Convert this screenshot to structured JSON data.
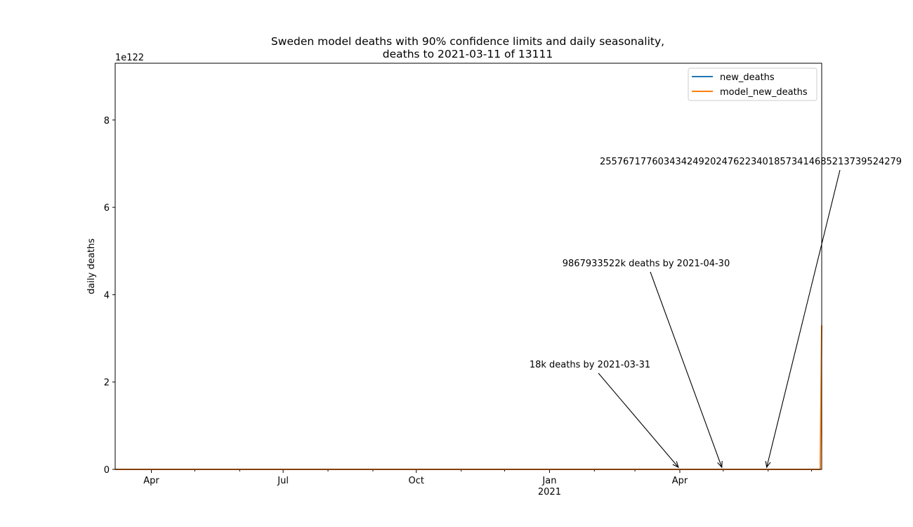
{
  "chart_data": {
    "type": "line",
    "title_line1": "Sweden model deaths with 90% confidence limits and daily seasonality,",
    "title_line2": "deaths to 2021-03-11 of 13111",
    "ylabel": "daily deaths",
    "xlabel": "",
    "y_scale_label": "1e122",
    "x_start": "2020-03-07",
    "x_end": "2021-07-08",
    "ylim": [
      0,
      9.3
    ],
    "yticks": [
      0,
      2,
      4,
      6,
      8
    ],
    "ytick_labels": [
      "0",
      "2",
      "4",
      "6",
      "8"
    ],
    "xticks": [
      {
        "date": "2020-04-01",
        "label": "Apr",
        "sublabel": ""
      },
      {
        "date": "2020-07-01",
        "label": "Jul",
        "sublabel": ""
      },
      {
        "date": "2020-10-01",
        "label": "Oct",
        "sublabel": ""
      },
      {
        "date": "2021-01-01",
        "label": "Jan",
        "sublabel": "2021"
      },
      {
        "date": "2021-04-01",
        "label": "Apr",
        "sublabel": ""
      }
    ],
    "series": [
      {
        "name": "new_deaths",
        "color": "#1f77b4",
        "points": [
          [
            "2020-03-07",
            0
          ],
          [
            "2021-03-11",
            0
          ]
        ]
      },
      {
        "name": "model_new_deaths",
        "color": "#ff7f0e",
        "points": [
          [
            "2020-03-07",
            0
          ],
          [
            "2021-07-07",
            0
          ],
          [
            "2021-07-08",
            3.3
          ]
        ]
      }
    ],
    "grid": false,
    "legend_position": "top-right",
    "annotations": [
      {
        "text": "18k deaths by 2021-03-31",
        "target_date": "2021-03-31",
        "target_value": 0
      },
      {
        "text": "9867933522k deaths by 2021-04-30",
        "target_date": "2021-04-30",
        "target_value": 0
      },
      {
        "text": "2557671776034342492024762234018573414685213739524279",
        "target_date": "2021-05-31",
        "target_value": 0
      }
    ]
  }
}
